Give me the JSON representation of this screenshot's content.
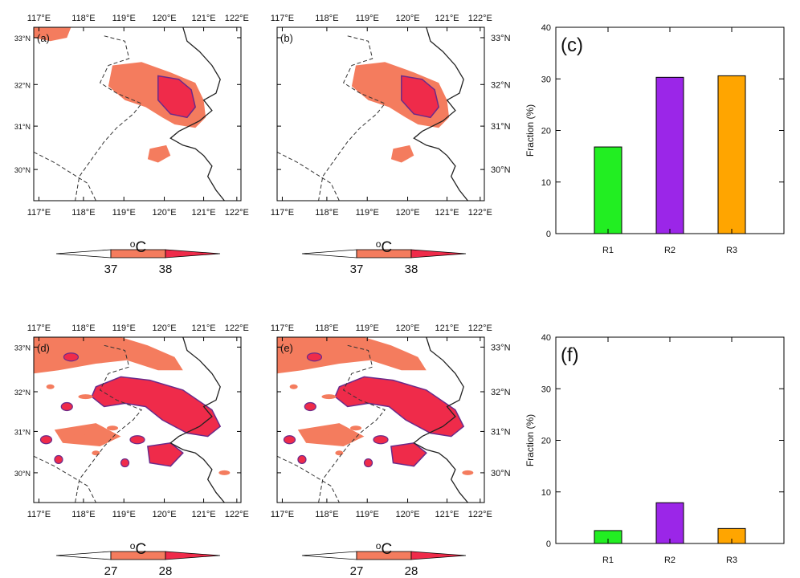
{
  "colors": {
    "band1": "#f47c5e",
    "band2": "#ef2b4a",
    "contour": "#6a2a8a",
    "coast": "#222222",
    "r1": "#22ee22",
    "r2": "#9b26e8",
    "r3": "#ffa500"
  },
  "map_panels": [
    {
      "label": "(a)",
      "density": 0.0,
      "ticks_right": false
    },
    {
      "label": "(b)",
      "density": 0.0,
      "ticks_right": true
    },
    {
      "label": "(d)",
      "density": 1.0,
      "ticks_right": false
    },
    {
      "label": "(e)",
      "density": 1.0,
      "ticks_right": true
    }
  ],
  "map_axes": {
    "lon_ticks": [
      "117°E",
      "118°E",
      "119°E",
      "120°E",
      "121°E",
      "122°E"
    ],
    "lat_ticks": [
      "30°N",
      "31°N",
      "32°N",
      "33°N"
    ]
  },
  "colorbars": [
    {
      "unit": "oC",
      "low": "37",
      "high": "38"
    },
    {
      "unit": "oC",
      "low": "37",
      "high": "38"
    },
    {
      "unit": "oC",
      "low": "27",
      "high": "28"
    },
    {
      "unit": "oC",
      "low": "27",
      "high": "28"
    }
  ],
  "chart_data": [
    {
      "type": "bar",
      "panel_label": "(c)",
      "categories": [
        "R1",
        "R2",
        "R3"
      ],
      "values": [
        16.8,
        30.3,
        30.6
      ],
      "ylabel": "Fraction (%)",
      "ylim": [
        0,
        40
      ],
      "yticks": [
        0,
        10,
        20,
        30,
        40
      ],
      "bar_colors": [
        "#22ee22",
        "#9b26e8",
        "#ffa500"
      ]
    },
    {
      "type": "bar",
      "panel_label": "(f)",
      "categories": [
        "R1",
        "R2",
        "R3"
      ],
      "values": [
        2.5,
        7.9,
        2.9
      ],
      "ylabel": "Fraction (%)",
      "ylim": [
        0,
        40
      ],
      "yticks": [
        0,
        10,
        20,
        30,
        40
      ],
      "bar_colors": [
        "#22ee22",
        "#9b26e8",
        "#ffa500"
      ]
    }
  ]
}
